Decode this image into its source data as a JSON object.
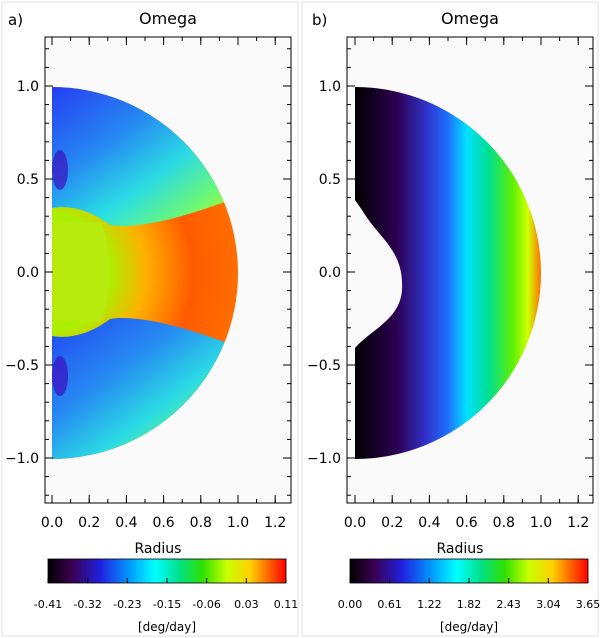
{
  "chart_data": [
    {
      "panel_label": "a)",
      "type": "heatmap",
      "title": "Omega",
      "xlabel": "Radius",
      "xlim": [
        0.0,
        1.25
      ],
      "ylim": [
        -1.25,
        1.25
      ],
      "x_ticks": [
        "0.0",
        "0.2",
        "0.4",
        "0.6",
        "0.8",
        "1.0",
        "1.2"
      ],
      "y_ticks": [
        "1.0",
        "0.5",
        "0.0",
        "-0.5",
        "-1.0"
      ],
      "colorbar": {
        "label": "[deg/day]",
        "ticks": [
          "-0.41",
          "-0.32",
          "-0.23",
          "-0.15",
          "-0.06",
          "0.03",
          "0.11"
        ],
        "colormap": "rainbow"
      }
    },
    {
      "panel_label": "b)",
      "type": "heatmap",
      "title": "Omega",
      "xlabel": "Radius",
      "xlim": [
        0.0,
        1.25
      ],
      "ylim": [
        -1.25,
        1.25
      ],
      "x_ticks": [
        "0.0",
        "0.2",
        "0.4",
        "0.6",
        "0.8",
        "1.0",
        "1.2"
      ],
      "y_ticks": [
        "1.0",
        "0.5",
        "0.0",
        "-0.5",
        "-1.0"
      ],
      "colorbar": {
        "label": "[deg/day]",
        "ticks": [
          "0.00",
          "0.61",
          "1.22",
          "1.82",
          "2.43",
          "3.04",
          "3.65"
        ],
        "colormap": "rainbow"
      }
    }
  ]
}
